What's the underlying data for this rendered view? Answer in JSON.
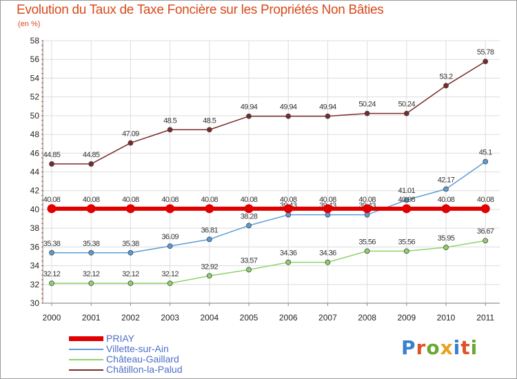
{
  "chart_data": {
    "type": "line",
    "title": "Evolution du Taux de Taxe Foncière sur les Propriétés Non Bâties",
    "ylabel": "(en %)",
    "xlabel": "",
    "x": [
      "2000",
      "2001",
      "2002",
      "2003",
      "2004",
      "2005",
      "2006",
      "2007",
      "2008",
      "2009",
      "2010",
      "2011"
    ],
    "ylim": [
      30,
      58
    ],
    "yticks": [
      30,
      32,
      34,
      36,
      38,
      40,
      42,
      44,
      46,
      48,
      50,
      52,
      54,
      56,
      58
    ],
    "grid": true,
    "series": [
      {
        "name": "PRIAY",
        "color": "#e00000",
        "values": [
          40.08,
          40.08,
          40.08,
          40.08,
          40.08,
          40.08,
          40.08,
          40.08,
          40.08,
          40.08,
          40.08,
          40.08
        ],
        "labels": [
          "40.08",
          "40.08",
          "40.08",
          "40.08",
          "40.08",
          "40.08",
          "40.08",
          "40.08",
          "40.08",
          "40.08",
          "40.08",
          "40.08"
        ]
      },
      {
        "name": "Villette-sur-Ain",
        "color": "#5b9bd5",
        "values": [
          35.38,
          35.38,
          35.38,
          36.09,
          36.81,
          38.28,
          39.43,
          39.43,
          39.43,
          41.01,
          42.17,
          45.1
        ],
        "labels": [
          "35.38",
          "35.38",
          "35.38",
          "36.09",
          "36.81",
          "38.28",
          "39.43",
          "39.43",
          "39.43",
          "41.01",
          "42.17",
          "45.1"
        ]
      },
      {
        "name": "Château-Gaillard",
        "color": "#8fd16a",
        "values": [
          32.12,
          32.12,
          32.12,
          32.12,
          32.92,
          33.57,
          34.36,
          34.36,
          35.56,
          35.56,
          35.95,
          36.67
        ],
        "labels": [
          "32.12",
          "32.12",
          "32.12",
          "32.12",
          "32.92",
          "33.57",
          "34.36",
          "34.36",
          "35.56",
          "35.56",
          "35.95",
          "36.67"
        ]
      },
      {
        "name": "Châtillon-la-Palud",
        "color": "#7a2a2a",
        "values": [
          44.85,
          44.85,
          47.09,
          48.5,
          48.5,
          49.94,
          49.94,
          49.94,
          50.24,
          50.24,
          53.2,
          55.78
        ],
        "labels": [
          "44.85",
          "44.85",
          "47.09",
          "48.5",
          "48.5",
          "49.94",
          "49.94",
          "49.94",
          "50.24",
          "50.24",
          "53.2",
          "55.78"
        ]
      }
    ],
    "legend_position": "bottom-left"
  },
  "logo": {
    "text": "Proxiti",
    "colors": [
      "#3a7fd0",
      "#e0502a",
      "#6aa832",
      "#e8a020",
      "#3a7fd0",
      "#e0502a",
      "#6aa832"
    ]
  }
}
